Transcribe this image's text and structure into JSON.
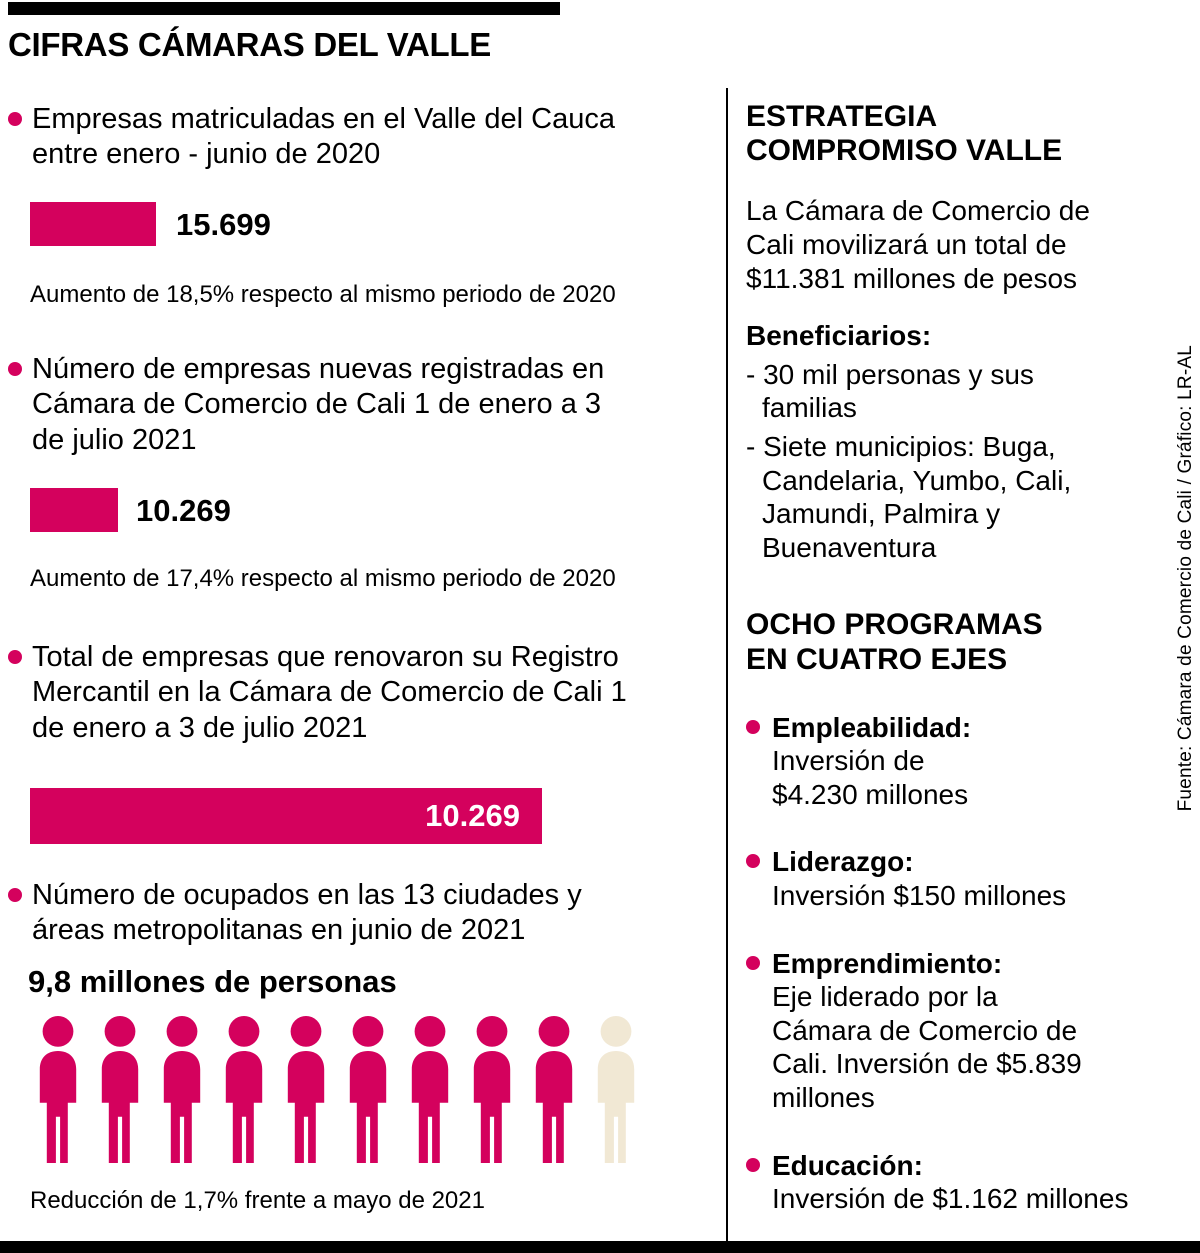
{
  "title": "CIFRAS CÁMARAS DEL VALLE",
  "source": "Fuente: Cámara de Comercio de Cali / Gráfico: LR-AL",
  "colors": {
    "accent": "#d4015d",
    "beige": "#f1e8d4",
    "ink": "#000000"
  },
  "chart_data": {
    "type": "bar",
    "title": "CIFRAS CÁMARAS DEL VALLE",
    "legend_position": "none",
    "bars": [
      {
        "label": "Empresas matriculadas en el Valle del Cauca entre enero - junio de 2020",
        "value": 15699,
        "value_label": "15.699",
        "note": "Aumento de 18,5% respecto al mismo periodo de 2020"
      },
      {
        "label": "Número de empresas nuevas registradas en Cámara de Comercio de Cali 1 de enero a 3 de julio 2021",
        "value": 10269,
        "value_label": "10.269",
        "note": "Aumento de 17,4% respecto al mismo periodo de 2020"
      },
      {
        "label": "Total de empresas que renovaron su Registro Mercantil en la Cámara de Comercio de Cali 1 de enero a 3 de julio 2021",
        "value": 10269,
        "value_label": "10.269"
      }
    ],
    "pictogram": {
      "label": "Número de ocupados en las 13 ciudades y áreas metropolitanas en junio de 2021",
      "value_text": "9,8 millones de personas",
      "icons_total": 10,
      "icons_filled": 9,
      "note": "Reducción de 1,7% frente a mayo de 2021"
    }
  },
  "right": {
    "section1_title": "ESTRATEGIA\nCOMPROMISO VALLE",
    "section1_text": "La Cámara de Comercio de\nCali movilizará un total de\n$11.381 millones de pesos",
    "beneficiarios_label": "Beneficiarios:",
    "beneficiarios": [
      "- 30 mil personas y sus\nfamilias",
      "- Siete municipios: Buga,\nCandelaria, Yumbo, Cali,\nJamundi, Palmira y\nBuenaventura"
    ],
    "section2_title": "OCHO PROGRAMAS\nEN CUATRO EJES",
    "programas": [
      {
        "label": "Empleabilidad:",
        "text": "Inversión de\n$4.230 millones"
      },
      {
        "label": "Liderazgo:",
        "text": "Inversión $150 millones"
      },
      {
        "label": "Emprendimiento:",
        "text": "Eje liderado por la\nCámara de Comercio de\nCali. Inversión de $5.839\nmillones"
      },
      {
        "label": "Educación:",
        "text": "Inversión de $1.162 millones"
      }
    ]
  }
}
